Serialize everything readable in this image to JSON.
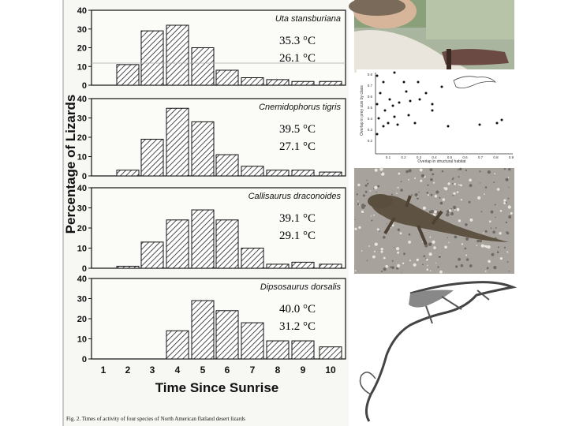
{
  "chart_data": {
    "type": "bar",
    "xlabel": "Time Since Sunrise",
    "ylabel": "Percentage of Lizards",
    "categories": [
      "1",
      "2",
      "3",
      "4",
      "5",
      "6",
      "7",
      "8",
      "9",
      "10"
    ],
    "ylim": [
      0,
      40
    ],
    "yticks": [
      "0",
      "10",
      "20",
      "30",
      "40"
    ],
    "caption": "Fig. 2. Times of activity of four species of North American flatland desert lizards",
    "panels": [
      {
        "species": "Uta stansburiana",
        "values": [
          0,
          11,
          29,
          32,
          20,
          8,
          4,
          3,
          2,
          2
        ],
        "temp_high": "35.3 °C",
        "temp_low": "26.1 °C"
      },
      {
        "species": "Cnemidophorus tigris",
        "values": [
          0,
          3,
          19,
          35,
          28,
          11,
          5,
          3,
          3,
          2
        ],
        "temp_high": "39.5 °C",
        "temp_low": "27.1 °C"
      },
      {
        "species": "Callisaurus draconoides",
        "values": [
          0,
          1,
          13,
          24,
          29,
          24,
          10,
          2,
          3,
          2
        ],
        "temp_high": "39.1 °C",
        "temp_low": "29.1 °C"
      },
      {
        "species": "Dipsosaurus dorsalis",
        "values": [
          0,
          0,
          0,
          14,
          29,
          24,
          18,
          9,
          9,
          6
        ],
        "temp_high": "40.0 °C",
        "temp_low": "31.2 °C"
      }
    ]
  },
  "scatter_inset": {
    "ylabel": "Overlap in prey size by class",
    "xlabel": "Overlap in structural habitat",
    "yticks": [
      "0.2",
      "0.3",
      "0.4",
      "0.5",
      "0.6",
      "0.7",
      "0.8"
    ],
    "xticks": [
      "0.1",
      "0.2",
      "0.3",
      "0.4",
      "0.5",
      "0.6",
      "0.7",
      "0.8",
      "0.9"
    ]
  },
  "images": [
    {
      "icon": "person-photo"
    },
    {
      "icon": "lizard-on-granite-photo"
    },
    {
      "icon": "anole-lizard-drawing"
    }
  ]
}
